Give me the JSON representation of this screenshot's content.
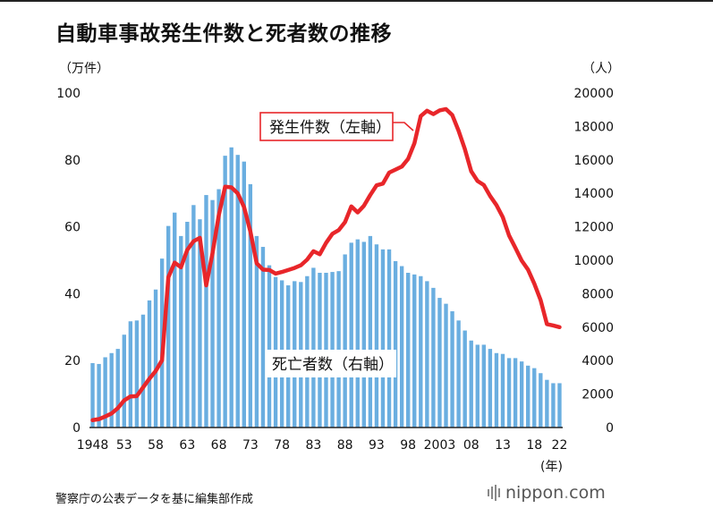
{
  "chart_data": {
    "type": "bar+line",
    "title": "自動車事故発生件数と死者数の推移",
    "left_axis_unit": "（万件）",
    "right_axis_unit": "（人）",
    "x_unit": "(年)",
    "ylim_left": [
      0,
      100
    ],
    "ylim_right": [
      0,
      20000
    ],
    "left_ticks": [
      "0",
      "20",
      "40",
      "60",
      "80",
      "100"
    ],
    "right_ticks": [
      "0",
      "2000",
      "4000",
      "6000",
      "8000",
      "10000",
      "12000",
      "14000",
      "16000",
      "18000",
      "20000"
    ],
    "x_tick_labels": [
      {
        "year": 1948,
        "label": "1948"
      },
      {
        "year": 1953,
        "label": "53"
      },
      {
        "year": 1958,
        "label": "58"
      },
      {
        "year": 1963,
        "label": "63"
      },
      {
        "year": 1968,
        "label": "68"
      },
      {
        "year": 1973,
        "label": "73"
      },
      {
        "year": 1978,
        "label": "78"
      },
      {
        "year": 1983,
        "label": "83"
      },
      {
        "year": 1988,
        "label": "88"
      },
      {
        "year": 1993,
        "label": "93"
      },
      {
        "year": 1998,
        "label": "98"
      },
      {
        "year": 2003,
        "label": "2003"
      },
      {
        "year": 2008,
        "label": "08"
      },
      {
        "year": 2013,
        "label": "13"
      },
      {
        "year": 2018,
        "label": "18"
      },
      {
        "year": 2022,
        "label": "22"
      }
    ],
    "years": [
      1948,
      1949,
      1950,
      1951,
      1952,
      1953,
      1954,
      1955,
      1956,
      1957,
      1958,
      1959,
      1960,
      1961,
      1962,
      1963,
      1964,
      1965,
      1966,
      1967,
      1968,
      1969,
      1970,
      1971,
      1972,
      1973,
      1974,
      1975,
      1976,
      1977,
      1978,
      1979,
      1980,
      1981,
      1982,
      1983,
      1984,
      1985,
      1986,
      1987,
      1988,
      1989,
      1990,
      1991,
      1992,
      1993,
      1994,
      1995,
      1996,
      1997,
      1998,
      1999,
      2000,
      2001,
      2002,
      2003,
      2004,
      2005,
      2006,
      2007,
      2008,
      2009,
      2010,
      2011,
      2012,
      2013,
      2014,
      2015,
      2016,
      2017,
      2018,
      2019,
      2020,
      2021,
      2022
    ],
    "series": [
      {
        "name": "死亡者数（右軸）",
        "kind": "bar",
        "axis": "right",
        "color": "#6aaee0",
        "values": [
          3850,
          3800,
          4200,
          4450,
          4700,
          5550,
          6350,
          6400,
          6750,
          7600,
          8250,
          10100,
          12050,
          12850,
          11450,
          12300,
          13300,
          12450,
          13900,
          13600,
          14250,
          16250,
          16750,
          16300,
          15900,
          14550,
          11450,
          10800,
          9700,
          9000,
          8800,
          8500,
          8750,
          8700,
          9050,
          9550,
          9250,
          9250,
          9300,
          9350,
          10350,
          11050,
          11250,
          11100,
          11450,
          10950,
          10650,
          10650,
          9950,
          9650,
          9250,
          9150,
          9050,
          8750,
          8350,
          7750,
          7400,
          6950,
          6400,
          5800,
          5200,
          4950,
          4950,
          4700,
          4450,
          4400,
          4150,
          4150,
          3950,
          3700,
          3550,
          3250,
          2850,
          2650,
          2650
        ]
      },
      {
        "name": "発生件数（左軸）",
        "kind": "line",
        "axis": "left",
        "color": "#e8262a",
        "values": [
          2.2,
          2.5,
          3.3,
          4.2,
          5.8,
          8.1,
          9.3,
          9.4,
          12.0,
          14.6,
          16.9,
          20.1,
          44.9,
          49.3,
          47.9,
          53.1,
          55.7,
          56.7,
          42.5,
          52.1,
          63.5,
          72.0,
          71.8,
          70.0,
          65.9,
          58.6,
          49.1,
          47.2,
          47.1,
          46.0,
          46.5,
          47.1,
          47.7,
          48.5,
          50.2,
          52.7,
          51.8,
          55.2,
          57.9,
          59.0,
          61.4,
          66.1,
          64.3,
          66.3,
          69.5,
          72.4,
          72.9,
          76.2,
          77.1,
          78.0,
          80.3,
          85.0,
          93.1,
          94.7,
          93.7,
          94.8,
          95.2,
          93.4,
          88.7,
          83.2,
          76.6,
          73.7,
          72.5,
          69.2,
          66.5,
          62.9,
          57.4,
          53.7,
          49.9,
          47.2,
          43.0,
          38.1,
          30.9,
          30.5,
          30.0
        ]
      }
    ],
    "annotations": {
      "line_label": "発生件数（左軸）",
      "bar_label": "死亡者数（右軸）"
    }
  },
  "footer": {
    "source": "警察庁の公表データを基に編集部作成",
    "brand_name": "nippon",
    "brand_dot": ".",
    "brand_tld": "com"
  }
}
